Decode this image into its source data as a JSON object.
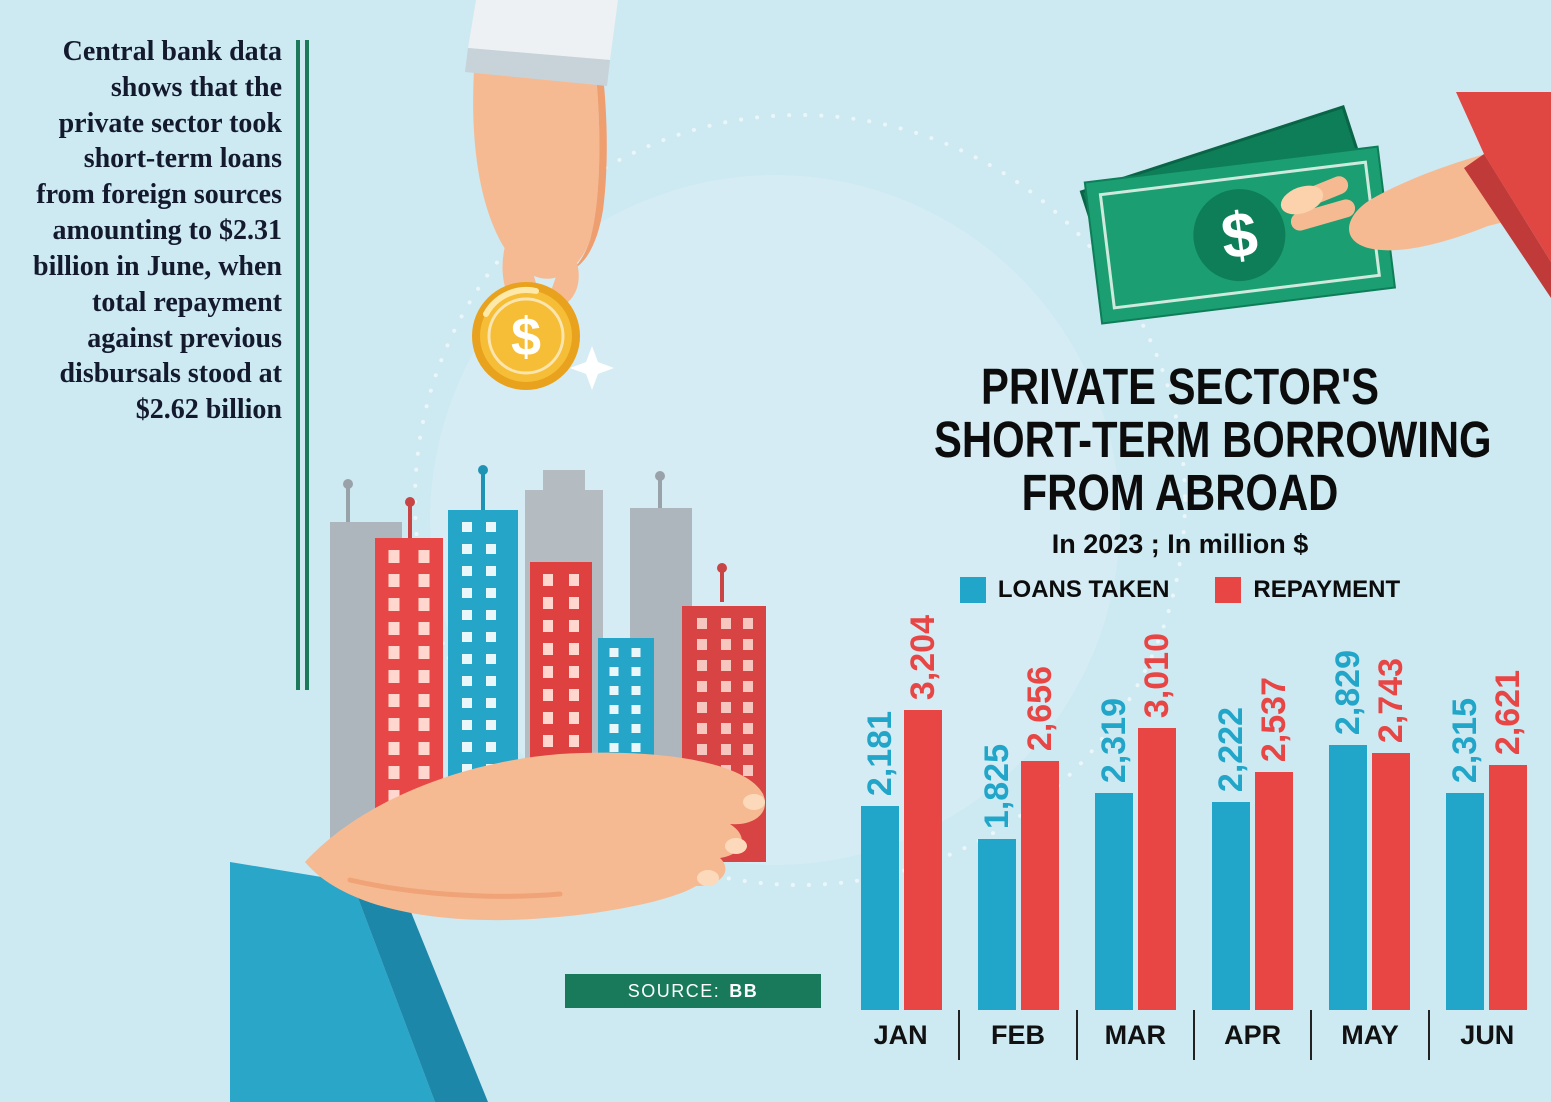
{
  "colors": {
    "background": "#cde9f2",
    "loans_blue": "#21a5c8",
    "repayment_red": "#e84545",
    "accent_green": "#187a5b",
    "title_black": "#0c0c0c"
  },
  "icons": {
    "dollar_glyph": "$"
  },
  "left_text": {
    "content": "Central bank data shows that the private sector took short-term loans from foreign sources amounting to $2.31 billion in June, when total repayment against previous disbursals stood at $2.62 billion"
  },
  "source": {
    "label": "SOURCE:",
    "value": "BB"
  },
  "chart_data": {
    "type": "bar",
    "title": "PRIVATE SECTOR'S SHORT-TERM BORROWING FROM ABROAD",
    "title_lines": [
      "PRIVATE SECTOR'S",
      "SHORT-TERM BORROWING",
      "FROM ABROAD"
    ],
    "subtitle": "In 2023 ; In million $",
    "xlabel": "",
    "ylabel": "",
    "ylim": [
      0,
      3204
    ],
    "grid": false,
    "legend_position": "top",
    "categories": [
      "JAN",
      "FEB",
      "MAR",
      "APR",
      "MAY",
      "JUN"
    ],
    "series": [
      {
        "name": "LOANS TAKEN",
        "color": "#21a5c8",
        "values": [
          2181,
          1825,
          2319,
          2222,
          2829,
          2315
        ]
      },
      {
        "name": "REPAYMENT",
        "color": "#e84545",
        "values": [
          3204,
          2656,
          3010,
          2537,
          2743,
          2621
        ]
      }
    ]
  }
}
